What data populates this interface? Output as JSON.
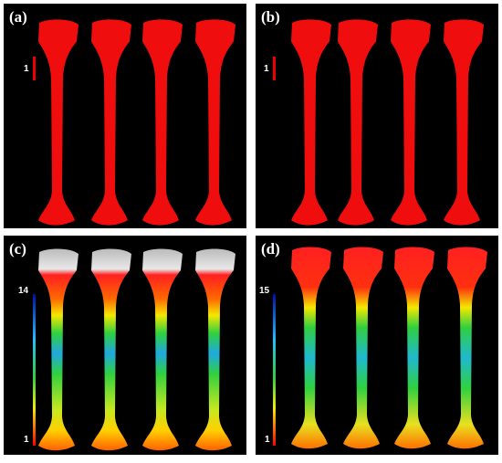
{
  "panels": [
    {
      "label": "(a)",
      "scale_labels": [
        "1"
      ]
    },
    {
      "label": "(b)",
      "scale_labels": [
        "1"
      ]
    },
    {
      "label": "(c)",
      "scale_labels": [
        "14",
        "1"
      ]
    },
    {
      "label": "(d)",
      "scale_labels": [
        "15",
        "1"
      ]
    }
  ]
}
